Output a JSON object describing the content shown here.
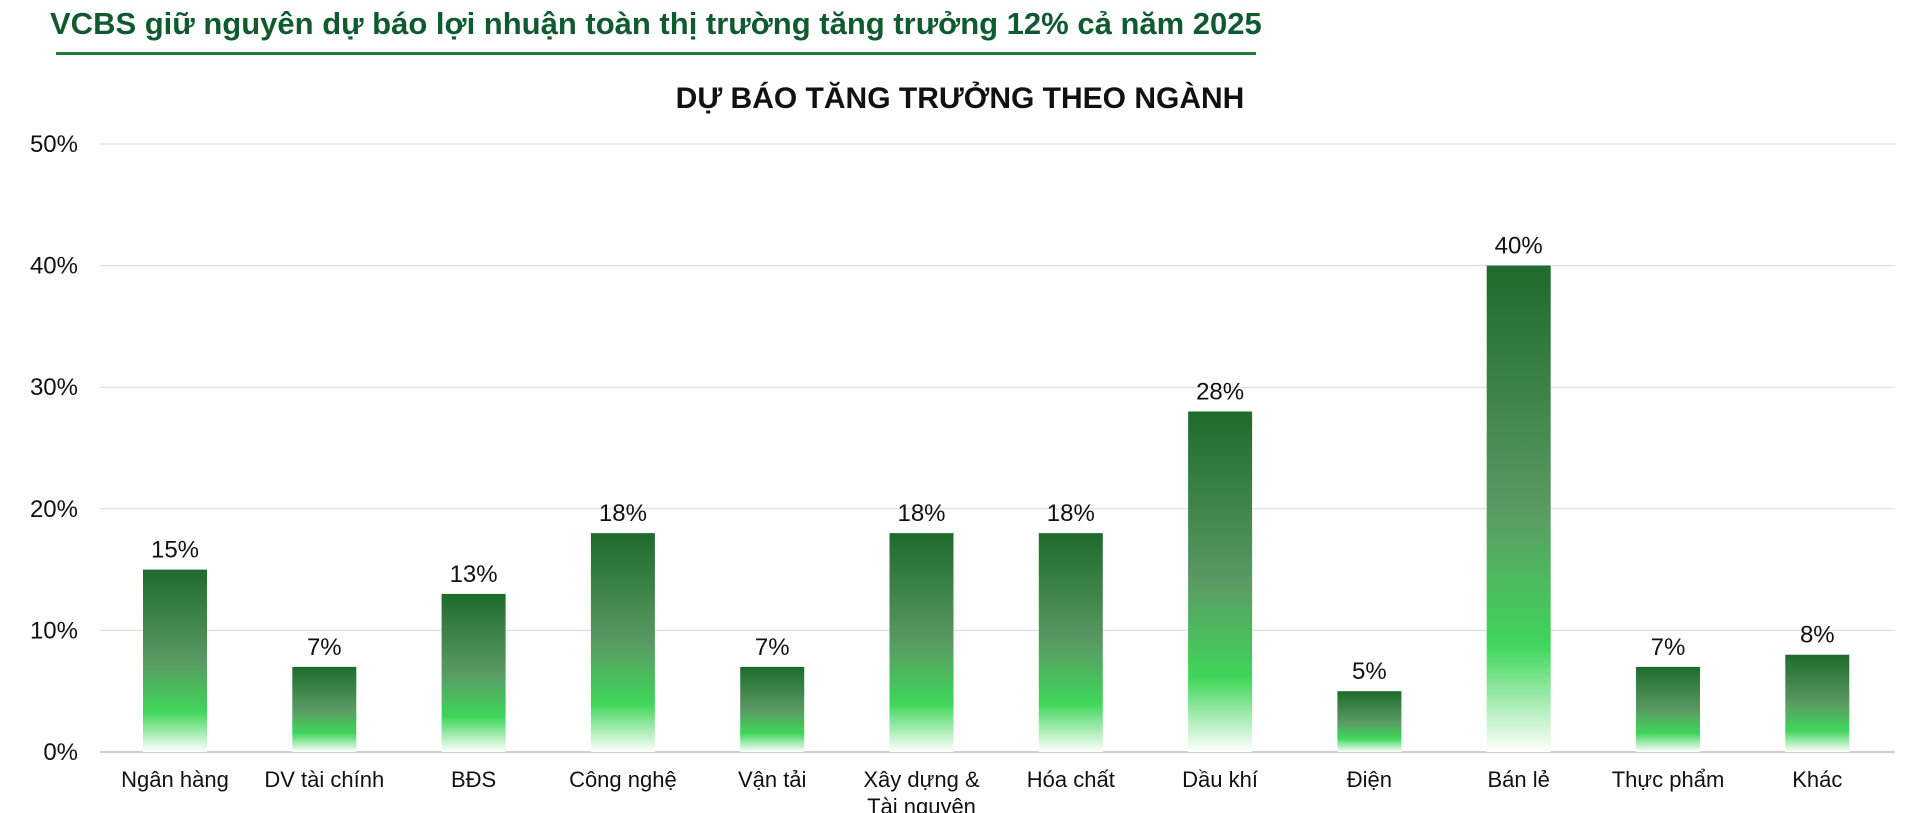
{
  "header": {
    "title": "VCBS giữ nguyên dự báo lợi nhuận toàn thị trường tăng trưởng 12% cả năm 2025"
  },
  "colors": {
    "brand": "#0f5a2e",
    "bar_top": "#1e6b2c",
    "bar_mid": "#3fd65a",
    "bar_bottom": "#ffffff",
    "grid": "#d9d9d9"
  },
  "chart_data": {
    "type": "bar",
    "title": "DỰ BÁO TĂNG TRƯỞNG THEO NGÀNH",
    "xlabel": "",
    "ylabel": "",
    "ylim": [
      0,
      50
    ],
    "grid": true,
    "legend": "none",
    "yticks": [
      "0%",
      "10%",
      "20%",
      "30%",
      "40%",
      "50%"
    ],
    "categories": [
      [
        "Ngân hàng"
      ],
      [
        "DV tài chính"
      ],
      [
        "BĐS"
      ],
      [
        "Công nghệ"
      ],
      [
        "Vận tải"
      ],
      [
        "Xây dựng &",
        "Tài nguyên"
      ],
      [
        "Hóa chất"
      ],
      [
        "Dầu khí"
      ],
      [
        "Điện"
      ],
      [
        "Bán lẻ"
      ],
      [
        "Thực phẩm"
      ],
      [
        "Khác"
      ]
    ],
    "values": [
      15,
      7,
      13,
      18,
      7,
      18,
      18,
      28,
      5,
      40,
      7,
      8
    ],
    "data_labels": [
      "15%",
      "7%",
      "13%",
      "18%",
      "7%",
      "18%",
      "18%",
      "28%",
      "5%",
      "40%",
      "7%",
      "8%"
    ]
  }
}
